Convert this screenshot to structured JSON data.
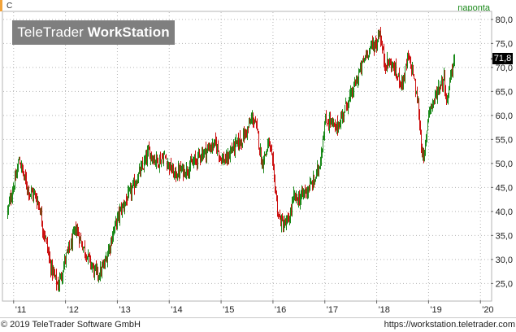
{
  "header": {
    "symbol": "C",
    "timeframe": "naponta"
  },
  "watermark": {
    "brand": "TeleTrader",
    "product": "WorkStation"
  },
  "last_price": "71,8",
  "footer": {
    "copyright": "© 2019 TeleTrader Software GmbH",
    "url": "https://workstation.teletrader.com"
  },
  "colors": {
    "up": "#1a8a1a",
    "down": "#cc1111",
    "grid": "#b4b4b4",
    "timeframe": "#1a8a1a"
  },
  "chart_data": {
    "type": "candlestick",
    "x_ticks": [
      "'11",
      "'12",
      "'13",
      "'14",
      "'15",
      "'16",
      "'17",
      "'18",
      "'19",
      "'20"
    ],
    "y_ticks": [
      "25,0",
      "30,0",
      "35,0",
      "40,0",
      "45,0",
      "50,0",
      "55,0",
      "60,0",
      "65,0",
      "70,0",
      "75,0",
      "80,0"
    ],
    "ylim": [
      21.5,
      81.5
    ],
    "xlim": [
      2010.8,
      2020.2
    ],
    "grid": true,
    "series": [
      {
        "x": [
          2010.88,
          2010.95,
          2011.05,
          2011.1,
          2011.2,
          2011.3,
          2011.4,
          2011.5,
          2011.55,
          2011.62,
          2011.7,
          2011.78,
          2011.85,
          2011.92,
          2012.0,
          2012.1,
          2012.2,
          2012.3,
          2012.45,
          2012.55,
          2012.65,
          2012.75,
          2012.85,
          2012.95,
          2013.05,
          2013.2,
          2013.3,
          2013.4,
          2013.5,
          2013.6,
          2013.7,
          2013.8,
          2013.9,
          2014.0,
          2014.1,
          2014.2,
          2014.3,
          2014.4,
          2014.5,
          2014.6,
          2014.7,
          2014.8,
          2014.9,
          2015.0,
          2015.1,
          2015.2,
          2015.3,
          2015.4,
          2015.5,
          2015.6,
          2015.65,
          2015.72,
          2015.78,
          2015.85,
          2015.92,
          2016.0,
          2016.05,
          2016.1,
          2016.2,
          2016.3,
          2016.4,
          2016.5,
          2016.6,
          2016.7,
          2016.8,
          2016.9,
          2017.0,
          2017.1,
          2017.2,
          2017.3,
          2017.4,
          2017.5,
          2017.6,
          2017.7,
          2017.8,
          2017.9,
          2018.0,
          2018.05,
          2018.1,
          2018.15,
          2018.2,
          2018.3,
          2018.4,
          2018.5,
          2018.6,
          2018.7,
          2018.75,
          2018.8,
          2018.85,
          2018.9,
          2018.95,
          2019.0,
          2019.05,
          2019.1,
          2019.2,
          2019.3,
          2019.35,
          2019.4,
          2019.45,
          2019.5
        ],
        "close": [
          40.0,
          43.5,
          47.5,
          51.0,
          47.0,
          44.0,
          43.5,
          41.0,
          37.0,
          34.0,
          29.0,
          26.5,
          24.5,
          27.0,
          30.5,
          33.0,
          36.5,
          33.5,
          30.0,
          27.5,
          27.0,
          29.0,
          33.0,
          37.0,
          40.0,
          43.0,
          45.0,
          47.5,
          49.5,
          52.5,
          51.0,
          50.5,
          51.5,
          49.5,
          47.5,
          48.5,
          48.5,
          49.5,
          50.5,
          52.0,
          52.5,
          53.5,
          54.0,
          51.0,
          50.5,
          53.0,
          54.0,
          55.0,
          57.0,
          59.5,
          58.5,
          55.0,
          50.0,
          52.0,
          54.5,
          49.0,
          44.0,
          39.0,
          37.0,
          38.0,
          43.0,
          42.5,
          44.0,
          45.0,
          46.5,
          50.0,
          58.5,
          59.0,
          57.0,
          59.0,
          62.0,
          64.0,
          67.0,
          70.0,
          73.0,
          74.5,
          75.0,
          78.0,
          74.0,
          71.0,
          71.0,
          70.5,
          68.0,
          67.0,
          72.0,
          69.0,
          65.0,
          62.0,
          55.0,
          50.0,
          55.0,
          61.5,
          62.0,
          63.0,
          66.0,
          68.0,
          62.0,
          67.0,
          70.0,
          71.8
        ]
      }
    ]
  }
}
